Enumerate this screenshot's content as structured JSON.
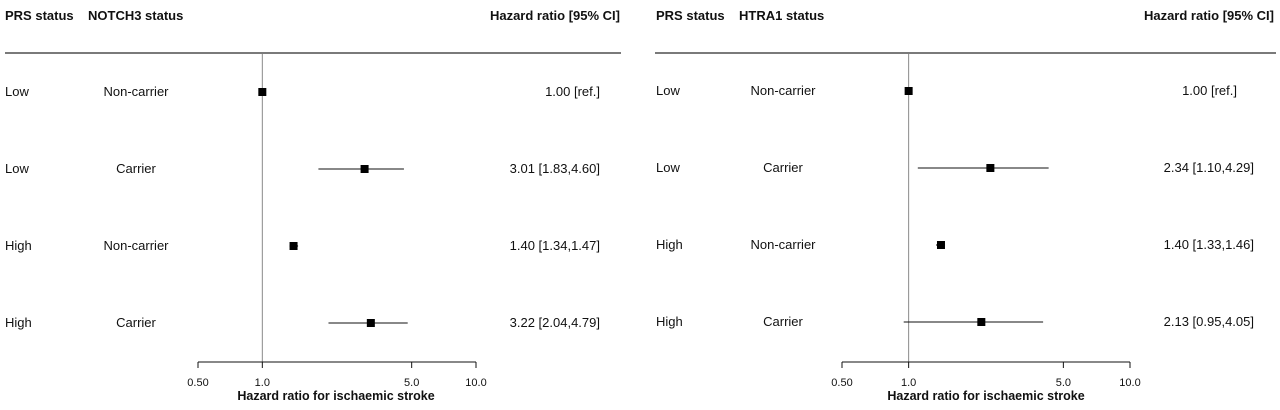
{
  "chart_data": [
    {
      "type": "forest",
      "headers": {
        "col1": "PRS status",
        "col2": "NOTCH3 status",
        "col3": "Hazard ratio [95% CI]"
      },
      "rows": [
        {
          "prs": "Low",
          "status": "Non-carrier",
          "hr": 1.0,
          "lo": null,
          "hi": null,
          "label": "1.00 [ref.]"
        },
        {
          "prs": "Low",
          "status": "Carrier",
          "hr": 3.01,
          "lo": 1.83,
          "hi": 4.6,
          "label": "3.01 [1.83,4.60]"
        },
        {
          "prs": "High",
          "status": "Non-carrier",
          "hr": 1.4,
          "lo": 1.34,
          "hi": 1.47,
          "label": "1.40 [1.34,1.47]"
        },
        {
          "prs": "High",
          "status": "Carrier",
          "hr": 3.22,
          "lo": 2.04,
          "hi": 4.79,
          "label": "3.22 [2.04,4.79]"
        }
      ],
      "x_scale": "log",
      "xlim": [
        0.5,
        10.0
      ],
      "x_ticks": [
        "0.50",
        "1.0",
        "5.0",
        "10.0"
      ],
      "reference_line": 1.0,
      "xlabel": "Hazard ratio for ischaemic stroke"
    },
    {
      "type": "forest",
      "headers": {
        "col1": "PRS status",
        "col2": "HTRA1 status",
        "col3": "Hazard ratio [95% CI]"
      },
      "rows": [
        {
          "prs": "Low",
          "status": "Non-carrier",
          "hr": 1.0,
          "lo": null,
          "hi": null,
          "label": "1.00 [ref.]"
        },
        {
          "prs": "Low",
          "status": "Carrier",
          "hr": 2.34,
          "lo": 1.1,
          "hi": 4.29,
          "label": "2.34 [1.10,4.29]"
        },
        {
          "prs": "High",
          "status": "Non-carrier",
          "hr": 1.4,
          "lo": 1.33,
          "hi": 1.46,
          "label": "1.40 [1.33,1.46]"
        },
        {
          "prs": "High",
          "status": "Carrier",
          "hr": 2.13,
          "lo": 0.95,
          "hi": 4.05,
          "label": "2.13 [0.95,4.05]"
        }
      ],
      "x_scale": "log",
      "xlim": [
        0.5,
        10.0
      ],
      "x_ticks": [
        "0.50",
        "1.0",
        "5.0",
        "10.0"
      ],
      "reference_line": 1.0,
      "xlabel": "Hazard ratio for ischaemic stroke"
    }
  ]
}
